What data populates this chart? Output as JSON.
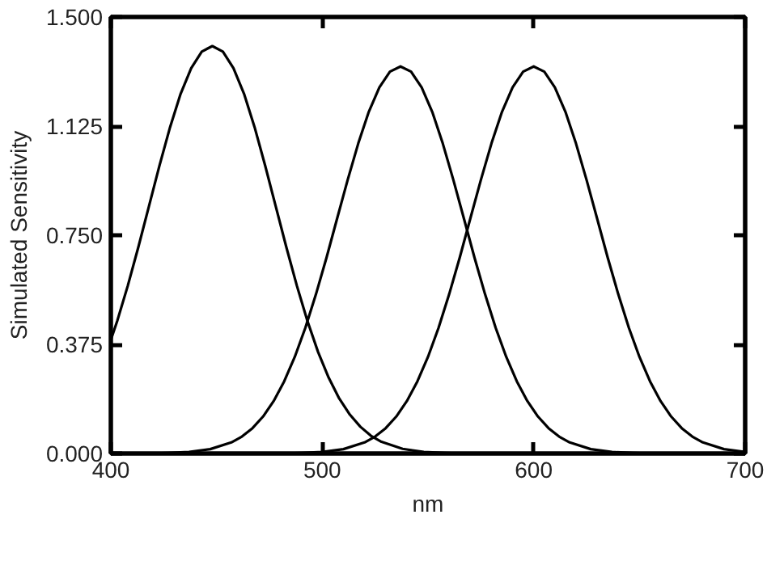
{
  "chart_data": {
    "type": "line",
    "xlabel": "nm",
    "ylabel": "Simulated Sensitivity",
    "xlim": [
      400,
      700
    ],
    "ylim": [
      0,
      1.5
    ],
    "xticks": [
      400,
      500,
      600,
      700
    ],
    "yticks": [
      {
        "value": 0,
        "label": "0.000"
      },
      {
        "value": 0.375,
        "label": "0.375"
      },
      {
        "value": 0.75,
        "label": "0.750"
      },
      {
        "value": 1.125,
        "label": "1.125"
      },
      {
        "value": 1.5,
        "label": "1.500"
      }
    ],
    "grid": false,
    "marker": "none",
    "line_style": "solid",
    "series": [
      {
        "color": "#000000",
        "x": [
          400,
          403,
          408,
          413,
          418,
          423,
          428,
          433,
          438,
          443,
          448,
          453,
          458,
          463,
          468,
          473,
          478,
          483,
          488,
          493,
          498,
          503,
          508,
          513,
          518,
          523,
          528,
          538,
          548,
          558,
          568,
          600,
          700
        ],
        "values": [
          0.39,
          0.455,
          0.576,
          0.709,
          0.849,
          0.989,
          1.121,
          1.236,
          1.324,
          1.381,
          1.4,
          1.381,
          1.324,
          1.236,
          1.121,
          0.989,
          0.849,
          0.709,
          0.576,
          0.455,
          0.349,
          0.261,
          0.189,
          0.134,
          0.092,
          0.061,
          0.04,
          0.016,
          0.005,
          0.002,
          0,
          0,
          0
        ]
      },
      {
        "color": "#000000",
        "x": [
          400,
          417,
          427,
          437,
          447,
          457,
          462,
          467,
          472,
          477,
          482,
          487,
          492,
          497,
          502,
          507,
          512,
          517,
          522,
          527,
          532,
          537,
          542,
          547,
          552,
          557,
          562,
          567,
          572,
          577,
          582,
          587,
          592,
          597,
          602,
          607,
          612,
          617,
          627,
          637,
          647,
          657,
          700
        ],
        "values": [
          0,
          0,
          0.002,
          0.005,
          0.015,
          0.038,
          0.058,
          0.087,
          0.127,
          0.18,
          0.248,
          0.332,
          0.432,
          0.547,
          0.673,
          0.807,
          0.94,
          1.065,
          1.174,
          1.258,
          1.312,
          1.33,
          1.312,
          1.258,
          1.174,
          1.065,
          0.94,
          0.807,
          0.673,
          0.547,
          0.432,
          0.332,
          0.248,
          0.18,
          0.127,
          0.087,
          0.058,
          0.038,
          0.015,
          0.005,
          0.002,
          0,
          0
        ]
      },
      {
        "color": "#000000",
        "x": [
          400,
          480,
          490,
          500,
          510,
          520,
          525,
          530,
          535,
          540,
          545,
          550,
          555,
          560,
          565,
          570,
          575,
          580,
          585,
          590,
          595,
          600,
          605,
          610,
          615,
          620,
          625,
          630,
          635,
          640,
          645,
          650,
          655,
          660,
          665,
          670,
          675,
          680,
          690,
          700
        ],
        "values": [
          0,
          0,
          0.002,
          0.005,
          0.015,
          0.038,
          0.058,
          0.087,
          0.127,
          0.18,
          0.248,
          0.332,
          0.432,
          0.547,
          0.673,
          0.807,
          0.94,
          1.065,
          1.174,
          1.258,
          1.312,
          1.33,
          1.312,
          1.258,
          1.174,
          1.065,
          0.94,
          0.807,
          0.673,
          0.547,
          0.432,
          0.332,
          0.248,
          0.18,
          0.127,
          0.087,
          0.058,
          0.038,
          0.015,
          0.005
        ]
      }
    ]
  }
}
